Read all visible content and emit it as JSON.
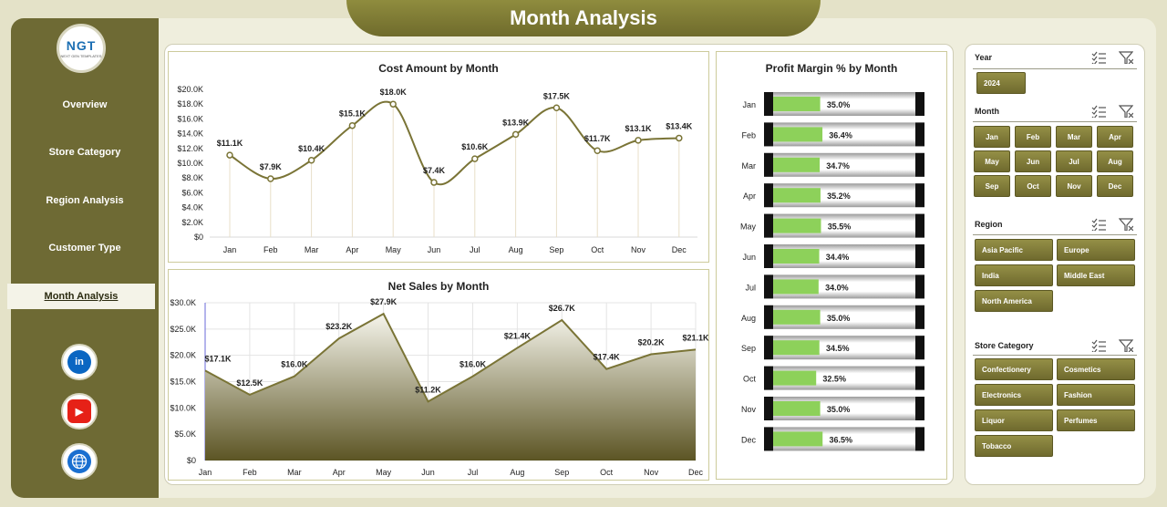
{
  "header": {
    "title": "Month Analysis"
  },
  "logo": {
    "text": "NGT",
    "subtext": "NEXT GEN TEMPLATES"
  },
  "nav": [
    {
      "label": "Overview",
      "active": false
    },
    {
      "label": "Store Category",
      "active": false
    },
    {
      "label": "Region Analysis",
      "active": false
    },
    {
      "label": "Customer Type",
      "active": false
    },
    {
      "label": "Month Analysis",
      "active": true
    }
  ],
  "social": [
    {
      "name": "linkedin",
      "glyph": "in",
      "color": "#0a66c2"
    },
    {
      "name": "youtube",
      "glyph": "▶",
      "color": "#e62117"
    },
    {
      "name": "web",
      "glyph": "🌐",
      "color": "#1a6fd0"
    }
  ],
  "colors": {
    "olive": "#6e6a34",
    "line": "#7a7436",
    "green": "#8dd15a"
  },
  "charts": {
    "cost": {
      "title": "Cost Amount by Month"
    },
    "sales": {
      "title": "Net Sales by Month"
    },
    "margin": {
      "title": "Profit Margin % by Month"
    }
  },
  "chart_data": [
    {
      "type": "line",
      "title": "Cost Amount by Month",
      "categories": [
        "Jan",
        "Feb",
        "Mar",
        "Apr",
        "May",
        "Jun",
        "Jul",
        "Aug",
        "Sep",
        "Oct",
        "Nov",
        "Dec"
      ],
      "values": [
        11.1,
        7.9,
        10.4,
        15.1,
        18.0,
        7.4,
        10.6,
        13.9,
        17.5,
        11.7,
        13.1,
        13.4
      ],
      "labels": [
        "$11.1K",
        "$7.9K",
        "$10.4K",
        "$15.1K",
        "$18.0K",
        "$7.4K",
        "$10.6K",
        "$13.9K",
        "$17.5K",
        "$11.7K",
        "$13.1K",
        "$13.4K"
      ],
      "yticks": [
        "$0",
        "$2.0K",
        "$4.0K",
        "$6.0K",
        "$8.0K",
        "$10.0K",
        "$12.0K",
        "$14.0K",
        "$16.0K",
        "$18.0K",
        "$20.0K"
      ],
      "ylim": [
        0,
        20
      ]
    },
    {
      "type": "area",
      "title": "Net Sales by Month",
      "categories": [
        "Jan",
        "Feb",
        "Mar",
        "Apr",
        "May",
        "Jun",
        "Jul",
        "Aug",
        "Sep",
        "Oct",
        "Nov",
        "Dec"
      ],
      "values": [
        17.1,
        12.5,
        16.0,
        23.2,
        27.9,
        11.2,
        16.0,
        21.4,
        26.7,
        17.4,
        20.2,
        21.1
      ],
      "labels": [
        "$17.1K",
        "$12.5K",
        "$16.0K",
        "$23.2K",
        "$27.9K",
        "$11.2K",
        "$16.0K",
        "$21.4K",
        "$26.7K",
        "$17.4K",
        "$20.2K",
        "$21.1K"
      ],
      "yticks": [
        "$0",
        "$5.0K",
        "$10.0K",
        "$15.0K",
        "$20.0K",
        "$25.0K",
        "$30.0K"
      ],
      "ylim": [
        0,
        30
      ]
    },
    {
      "type": "bar",
      "title": "Profit Margin % by Month",
      "categories": [
        "Jan",
        "Feb",
        "Mar",
        "Apr",
        "May",
        "Jun",
        "Jul",
        "Aug",
        "Sep",
        "Oct",
        "Nov",
        "Dec"
      ],
      "values": [
        35.0,
        36.4,
        34.7,
        35.2,
        35.5,
        34.4,
        34.0,
        35.0,
        34.5,
        32.5,
        35.0,
        36.5
      ],
      "labels": [
        "35.0%",
        "36.4%",
        "34.7%",
        "35.2%",
        "35.5%",
        "34.4%",
        "34.0%",
        "35.0%",
        "34.5%",
        "32.5%",
        "35.0%",
        "36.5%"
      ]
    }
  ],
  "slicers": {
    "year": {
      "title": "Year",
      "items": [
        "2024"
      ]
    },
    "month": {
      "title": "Month",
      "items": [
        "Jan",
        "Feb",
        "Mar",
        "Apr",
        "May",
        "Jun",
        "Jul",
        "Aug",
        "Sep",
        "Oct",
        "Nov",
        "Dec"
      ]
    },
    "region": {
      "title": "Region",
      "items": [
        "Asia Pacific",
        "Europe",
        "India",
        "Middle East",
        "North America"
      ]
    },
    "store": {
      "title": "Store Category",
      "items": [
        "Confectionery",
        "Cosmetics",
        "Electronics",
        "Fashion",
        "Liquor",
        "Perfumes",
        "Tobacco"
      ]
    }
  }
}
